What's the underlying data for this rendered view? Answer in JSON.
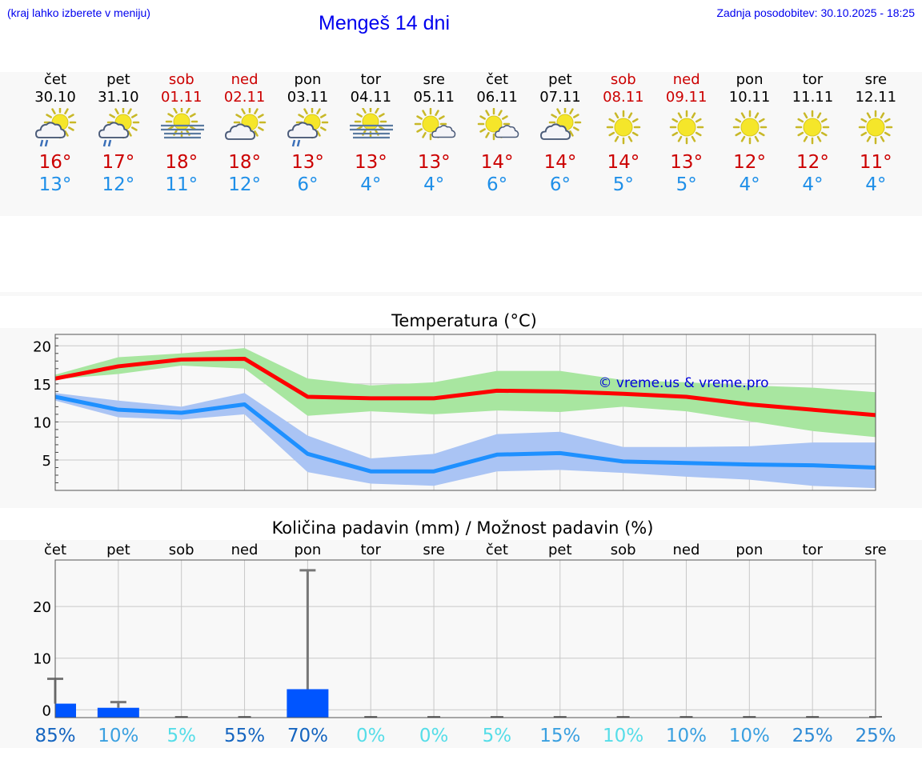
{
  "header": {
    "hint": "(kraj lahko izberete v meniju)",
    "title": "Mengeš 14 dni",
    "updated": "Zadnja posodobitev: 30.10.2025 - 18:25"
  },
  "colors": {
    "max": "#cc0000",
    "min": "#1f8fe8",
    "max_line": "#ff0000",
    "min_line": "#1e90ff",
    "max_band": "#a8e6a0",
    "min_band": "#aac4f4",
    "precip_bar": "#0055ff",
    "weekend": "#cc0000"
  },
  "days": [
    {
      "name": "čet",
      "date": "30.10",
      "weekend": false,
      "icon": "sun-cloud-rain-icon",
      "max": "16°",
      "min": "13°"
    },
    {
      "name": "pet",
      "date": "31.10",
      "weekend": false,
      "icon": "sun-cloud-rain-icon",
      "max": "17°",
      "min": "12°"
    },
    {
      "name": "sob",
      "date": "01.11",
      "weekend": true,
      "icon": "sun-fog-icon",
      "max": "18°",
      "min": "11°"
    },
    {
      "name": "ned",
      "date": "02.11",
      "weekend": true,
      "icon": "sun-cloud-icon",
      "max": "18°",
      "min": "12°"
    },
    {
      "name": "pon",
      "date": "03.11",
      "weekend": false,
      "icon": "sun-cloud-rain-icon",
      "max": "13°",
      "min": "6°"
    },
    {
      "name": "tor",
      "date": "04.11",
      "weekend": false,
      "icon": "sun-fog-icon",
      "max": "13°",
      "min": "4°"
    },
    {
      "name": "sre",
      "date": "05.11",
      "weekend": false,
      "icon": "sun-small-cloud-icon",
      "max": "13°",
      "min": "4°"
    },
    {
      "name": "čet",
      "date": "06.11",
      "weekend": false,
      "icon": "sun-small-cloud-icon",
      "max": "14°",
      "min": "6°"
    },
    {
      "name": "pet",
      "date": "07.11",
      "weekend": false,
      "icon": "sun-cloud-icon",
      "max": "14°",
      "min": "6°"
    },
    {
      "name": "sob",
      "date": "08.11",
      "weekend": true,
      "icon": "sun-icon",
      "max": "14°",
      "min": "5°"
    },
    {
      "name": "ned",
      "date": "09.11",
      "weekend": true,
      "icon": "sun-icon",
      "max": "13°",
      "min": "5°"
    },
    {
      "name": "pon",
      "date": "10.11",
      "weekend": false,
      "icon": "sun-icon",
      "max": "12°",
      "min": "4°"
    },
    {
      "name": "tor",
      "date": "11.11",
      "weekend": false,
      "icon": "sun-icon",
      "max": "12°",
      "min": "4°"
    },
    {
      "name": "sre",
      "date": "12.11",
      "weekend": false,
      "icon": "sun-icon",
      "max": "11°",
      "min": "4°"
    }
  ],
  "chart_data": [
    {
      "type": "line",
      "title": "Temperatura (°C)",
      "watermark": "© vreme.us & vreme.pro",
      "ylim": [
        1,
        21.5
      ],
      "yticks": [
        5,
        10,
        15,
        20
      ],
      "grid": true,
      "series": [
        {
          "name": "max",
          "values": [
            15.7,
            17.3,
            18.2,
            18.3,
            13.3,
            13.1,
            13.1,
            14.1,
            14.0,
            13.7,
            13.3,
            12.3,
            11.6,
            10.9
          ],
          "band_low": [
            15.6,
            16.3,
            17.4,
            17.0,
            10.8,
            11.4,
            11.0,
            11.5,
            11.3,
            12.0,
            11.4,
            10.1,
            8.8,
            8.0
          ],
          "band_high": [
            16.2,
            18.5,
            19.0,
            19.7,
            15.7,
            14.8,
            15.2,
            16.7,
            16.7,
            15.5,
            15.2,
            14.8,
            14.5,
            13.9
          ]
        },
        {
          "name": "min",
          "values": [
            13.3,
            11.6,
            11.2,
            12.3,
            5.8,
            3.5,
            3.5,
            5.7,
            5.9,
            4.8,
            4.6,
            4.4,
            4.3,
            4.0
          ],
          "band_low": [
            12.8,
            10.6,
            10.3,
            11.0,
            3.4,
            1.9,
            1.6,
            3.5,
            3.7,
            3.3,
            2.8,
            2.4,
            1.6,
            1.3
          ],
          "band_high": [
            13.8,
            12.8,
            12.0,
            13.8,
            8.2,
            5.2,
            5.8,
            8.4,
            8.7,
            6.7,
            6.7,
            6.8,
            7.3,
            7.3
          ]
        }
      ]
    },
    {
      "type": "bar",
      "title": "Količina padavin (mm) / Možnost padavin (%)",
      "categories": [
        "čet",
        "pet",
        "sob",
        "ned",
        "pon",
        "tor",
        "sre",
        "čet",
        "pet",
        "sob",
        "ned",
        "pon",
        "tor",
        "sre"
      ],
      "ylim": [
        -1.5,
        29
      ],
      "yticks": [
        0,
        10,
        20
      ],
      "values": [
        1.2,
        0.4,
        0,
        0,
        4.0,
        0,
        0,
        0,
        0,
        0,
        0,
        0,
        0,
        0
      ],
      "max_values": [
        6.0,
        1.5,
        0,
        0,
        27.0,
        0,
        0,
        0,
        0,
        0,
        0,
        0,
        0,
        0
      ],
      "probability": [
        "85%",
        "10%",
        "5%",
        "55%",
        "70%",
        "0%",
        "0%",
        "5%",
        "15%",
        "10%",
        "10%",
        "10%",
        "25%",
        "25%"
      ],
      "probability_colors": [
        "#1565c0",
        "#3aa0e0",
        "#55dde8",
        "#1565c0",
        "#1565c0",
        "#55dde8",
        "#55dde8",
        "#55dde8",
        "#3aa0e0",
        "#55dde8",
        "#3aa0e0",
        "#3aa0e0",
        "#2e8bd6",
        "#2e8bd6"
      ]
    }
  ]
}
